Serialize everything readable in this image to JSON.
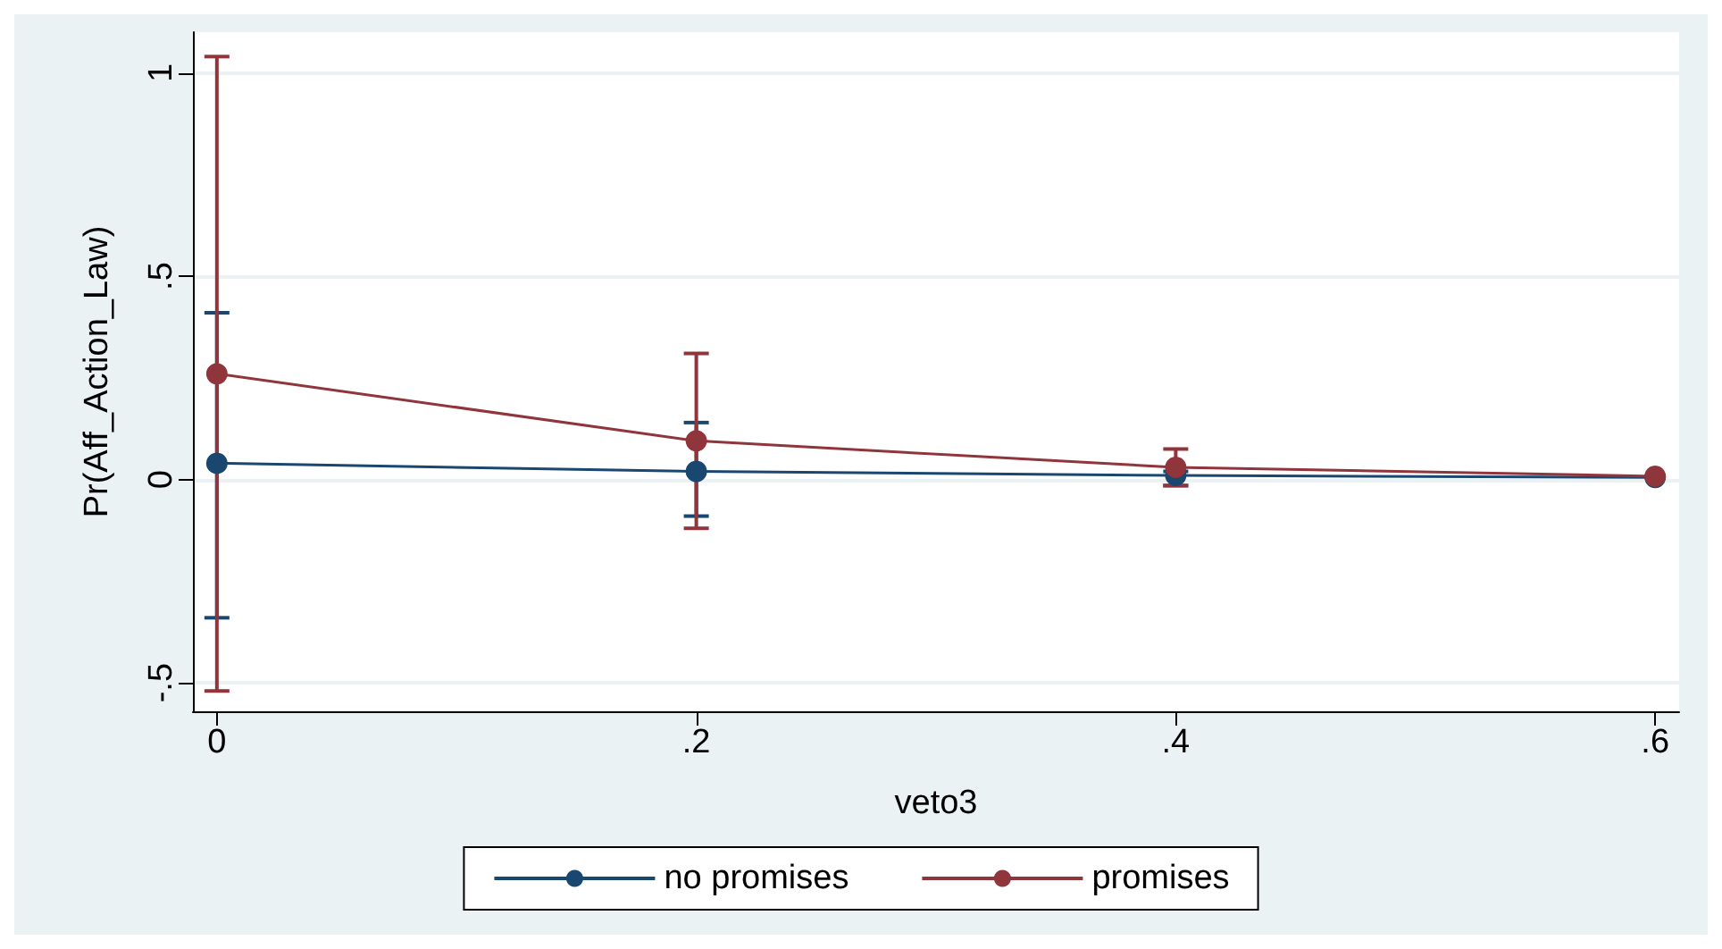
{
  "chart_data": {
    "type": "line",
    "xlabel": "veto3",
    "ylabel": "Pr(Aff_Action_Law)",
    "x": [
      0,
      0.2,
      0.4,
      0.6
    ],
    "series": [
      {
        "name": "no promises",
        "color": "#1a476f",
        "values": [
          0.04,
          0.02,
          0.01,
          0.005
        ],
        "errors": [
          [
            -0.34,
            0.41
          ],
          [
            -0.09,
            0.14
          ],
          [
            -0.015,
            0.02
          ],
          null
        ]
      },
      {
        "name": "promises",
        "color": "#90353b",
        "values": [
          0.26,
          0.095,
          0.03,
          0.008
        ],
        "errors": [
          [
            -0.52,
            1.04
          ],
          [
            -0.12,
            0.31
          ],
          [
            -0.015,
            0.075
          ],
          null
        ]
      }
    ],
    "xlim": [
      -0.01,
      0.61
    ],
    "ylim": [
      -0.57,
      1.1
    ],
    "xticks": [
      {
        "value": 0,
        "label": "0"
      },
      {
        "value": 0.2,
        "label": ".2"
      },
      {
        "value": 0.4,
        "label": ".4"
      },
      {
        "value": 0.6,
        "label": ".6"
      }
    ],
    "yticks": [
      {
        "value": -0.5,
        "label": "-.5"
      },
      {
        "value": 0,
        "label": "0"
      },
      {
        "value": 0.5,
        "label": ".5"
      },
      {
        "value": 1,
        "label": "1"
      }
    ],
    "grid": "y",
    "legend": "bottom",
    "marker": "circle",
    "line_style": "solid"
  }
}
